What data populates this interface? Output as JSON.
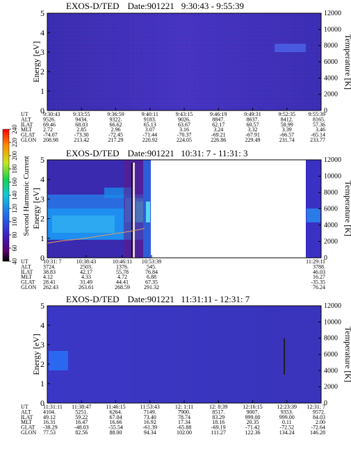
{
  "chart_data": [
    {
      "type": "heatmap",
      "title": "EXOS-D/TED",
      "date_label": "Date:901221",
      "time_range": "9:30:43 - 9:55:39",
      "ylabel": "Energy [eV]",
      "y2label": "Temperature [K]",
      "ylim": [
        0,
        5
      ],
      "y_ticks": [
        "0",
        "1",
        "2",
        "3",
        "4",
        "5"
      ],
      "y2lim": [
        0,
        12000
      ],
      "y2_ticks": [
        "0",
        "2000",
        "4000",
        "6000",
        "8000",
        "10000",
        "12000"
      ],
      "grid": false,
      "row_labels": [
        "UT",
        "ALT",
        "ILAT",
        "MLT",
        "GLAT",
        "GLON"
      ],
      "columns": [
        [
          "9:30:43",
          "9526.",
          "69.46",
          "2.72",
          "-74.07",
          "208.98"
        ],
        [
          "9:33:55",
          "9434.",
          "68.03",
          "2.85",
          "-73.30",
          "213.42"
        ],
        [
          "9:36:59",
          "9322.",
          "66.62",
          "2.96",
          "-72.45",
          "217.29"
        ],
        [
          "9:40:11",
          "9183.",
          "65.13",
          "3.07",
          "-71.44",
          "220.92"
        ],
        [
          "9:43:15",
          "9026.",
          "63.67",
          "3.16",
          "-70.37",
          "224.05"
        ],
        [
          "9:46:19",
          "8847.",
          "62.17",
          "3.24",
          "-69.21",
          "226.86"
        ],
        [
          "9:49:31",
          "8637.",
          "60.57",
          "3.32",
          "-67.91",
          "229.49"
        ],
        [
          "9:52:35",
          "8412.",
          "58.99",
          "3.39",
          "-66.57",
          "231.74"
        ],
        [
          "9:55:39",
          "8165.",
          "57.36",
          "3.46",
          "-65.14",
          "233.77"
        ]
      ]
    },
    {
      "type": "heatmap",
      "title": "EXOS-D/TED",
      "date_label": "Date:901221",
      "time_range": "10:31: 7 - 11:31: 3",
      "ylabel": "Energy [eV]",
      "y2label": "Temperature [K]",
      "ylim": [
        0,
        5
      ],
      "y_ticks": [
        "0",
        "1",
        "2",
        "3",
        "4",
        "5"
      ],
      "y2lim": [
        0,
        12000
      ],
      "y2_ticks": [
        "0",
        "2000",
        "4000",
        "6000",
        "8000",
        "10000",
        "12000"
      ],
      "row_labels": [
        "UT",
        "ALT",
        "ILAT",
        "MLT",
        "GLAT",
        "GLON"
      ],
      "columns": [
        [
          "10:31: 7",
          "3724.",
          "38.83",
          "4.12",
          "28.41",
          "262.43"
        ],
        [
          "10:38:43",
          "2503.",
          "42.17",
          "4.33",
          "31.49",
          "263.61"
        ],
        [
          "10:46:11",
          "1376.",
          "55.78",
          "4.72",
          "44.41",
          "268.59"
        ],
        [
          "10:53:39",
          "545.",
          "76.84",
          "6.88",
          "67.35",
          "291.32"
        ],
        [
          "11:29:11",
          "3788.",
          "46.03",
          "16.27",
          "-35.35",
          "76.24"
        ]
      ],
      "colorbar": {
        "label": "Second Harmonic Current",
        "ticks": [
          "40",
          "60",
          "80",
          "100",
          "120",
          "140",
          "160",
          "180",
          "200",
          "220",
          "240"
        ],
        "range": [
          40,
          240
        ]
      },
      "temperature_trace": {
        "x_fraction": [
          0.0,
          0.1,
          0.2,
          0.3,
          0.4,
          0.5,
          0.6
        ],
        "values": [
          1800,
          2100,
          2300,
          2600,
          2900,
          3200,
          3600
        ]
      }
    },
    {
      "type": "heatmap",
      "title": "EXOS-D/TED",
      "date_label": "Date:901221",
      "time_range": "11:31:11 - 12:31: 7",
      "ylabel": "Energy [eV]",
      "y2label": "Temperature [K]",
      "ylim": [
        0,
        5
      ],
      "y_ticks": [
        "0",
        "1",
        "2",
        "3",
        "4",
        "5"
      ],
      "y2lim": [
        0,
        12000
      ],
      "y2_ticks": [
        "0",
        "2000",
        "4000",
        "6000",
        "8000",
        "10000",
        "12000"
      ],
      "row_labels": [
        "UT",
        "ALT",
        "ILAT",
        "MLT",
        "GLAT",
        "GLON"
      ],
      "columns": [
        [
          "11:31:11",
          "4104.",
          "49.12",
          "16.31",
          "-38.29",
          "77.53"
        ],
        [
          "11:38:47",
          "5251.",
          "59.22",
          "16.47",
          "-48.03",
          "82.56"
        ],
        [
          "11:46:15",
          "6264.",
          "67.04",
          "16.66",
          "-55.54",
          "88.00"
        ],
        [
          "11:53:43",
          "7149.",
          "73.40",
          "16.92",
          "-61.39",
          "94.34"
        ],
        [
          "12: 1:11",
          "7900.",
          "78.74",
          "17.34",
          "-65.88",
          "102.00"
        ],
        [
          "12: 8:39",
          "8517.",
          "83.29",
          "18.16",
          "-69.19",
          "111.27"
        ],
        [
          "12:16:15",
          "9007.",
          "999.00",
          "20.35",
          "-71.42",
          "122.36"
        ],
        [
          "12:23:39",
          "9353.",
          "999.00",
          "0.11",
          "-72.52",
          "134.24"
        ],
        [
          "12:31: 7",
          "9572.",
          "84.03",
          "2.00",
          "-72.64",
          "146.28"
        ]
      ]
    }
  ]
}
